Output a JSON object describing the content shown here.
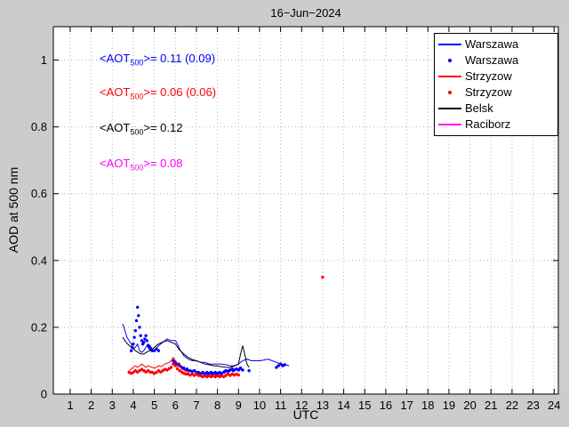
{
  "title": "16−Jun−2024",
  "axes": {
    "xlabel": "UTC",
    "ylabel": "AOD at 500 nm",
    "xticks": [
      "1",
      "2",
      "3",
      "4",
      "5",
      "6",
      "7",
      "8",
      "9",
      "10",
      "11",
      "12",
      "13",
      "14",
      "15",
      "16",
      "17",
      "18",
      "19",
      "20",
      "21",
      "22",
      "23",
      "24"
    ],
    "yticks": [
      "0",
      "0.2",
      "0.4",
      "0.6",
      "0.8",
      "1"
    ]
  },
  "annotations": [
    {
      "prefix": "<AOT",
      "sub": "500",
      "suffix": ">= 0.11 (0.09)",
      "color": "#0000ff"
    },
    {
      "prefix": "<AOT",
      "sub": "500",
      "suffix": ">= 0.06 (0.06)",
      "color": "#ff0000"
    },
    {
      "prefix": "<AOT",
      "sub": "500",
      "suffix": ">= 0.12",
      "color": "#000000"
    },
    {
      "prefix": "<AOT",
      "sub": "500",
      "suffix": ">= 0.08",
      "color": "#ff00ff"
    }
  ],
  "legend": {
    "position": "top-right",
    "entries": [
      {
        "label": "Warszawa",
        "color": "#0000ff",
        "marker": "line"
      },
      {
        "label": "Warszawa",
        "color": "#0000ff",
        "marker": "dot"
      },
      {
        "label": "Strzyzow",
        "color": "#ff0000",
        "marker": "line"
      },
      {
        "label": "Strzyzow",
        "color": "#ff0000",
        "marker": "dot"
      },
      {
        "label": "Belsk",
        "color": "#000000",
        "marker": "line"
      },
      {
        "label": "Raciborz",
        "color": "#ff00ff",
        "marker": "line"
      }
    ]
  },
  "chart_data": {
    "type": "line",
    "title": "16−Jun−2024",
    "xlabel": "UTC",
    "ylabel": "AOD at 500 nm",
    "xlim": [
      0.2,
      24.2
    ],
    "ylim": [
      0,
      1.1
    ],
    "grid": true,
    "series": [
      {
        "name": "Warszawa",
        "type": "line",
        "color": "#0000ff",
        "points": [
          [
            3.5,
            0.21
          ],
          [
            3.6,
            0.19
          ],
          [
            3.7,
            0.17
          ],
          [
            3.8,
            0.16
          ],
          [
            3.9,
            0.15
          ],
          [
            4.0,
            0.135
          ],
          [
            4.1,
            0.14
          ],
          [
            4.2,
            0.15
          ],
          [
            4.3,
            0.13
          ],
          [
            4.4,
            0.125
          ],
          [
            4.5,
            0.13
          ],
          [
            4.6,
            0.14
          ],
          [
            4.7,
            0.15
          ],
          [
            4.8,
            0.145
          ],
          [
            4.9,
            0.135
          ],
          [
            5.0,
            0.13
          ],
          [
            5.2,
            0.145
          ],
          [
            5.4,
            0.155
          ],
          [
            5.6,
            0.165
          ],
          [
            5.8,
            0.16
          ],
          [
            6.0,
            0.16
          ],
          [
            6.1,
            0.15
          ],
          [
            6.2,
            0.135
          ],
          [
            6.3,
            0.125
          ],
          [
            6.4,
            0.115
          ],
          [
            6.5,
            0.11
          ],
          [
            6.6,
            0.105
          ],
          [
            6.8,
            0.1
          ],
          [
            7.0,
            0.1
          ],
          [
            7.2,
            0.095
          ],
          [
            7.4,
            0.095
          ],
          [
            7.6,
            0.09
          ],
          [
            7.8,
            0.09
          ],
          [
            8.0,
            0.09
          ],
          [
            8.2,
            0.09
          ],
          [
            8.4,
            0.088
          ],
          [
            8.6,
            0.085
          ],
          [
            8.8,
            0.085
          ],
          [
            9.0,
            0.09
          ],
          [
            9.2,
            0.1
          ],
          [
            9.4,
            0.105
          ],
          [
            9.6,
            0.1
          ],
          [
            9.8,
            0.1
          ],
          [
            10.0,
            0.1
          ],
          [
            10.2,
            0.102
          ],
          [
            10.4,
            0.105
          ],
          [
            10.6,
            0.1
          ],
          [
            10.8,
            0.095
          ],
          [
            11.0,
            0.09
          ],
          [
            11.2,
            0.088
          ],
          [
            11.4,
            0.085
          ]
        ]
      },
      {
        "name": "Warszawa",
        "type": "scatter",
        "color": "#0000ff",
        "points": [
          [
            3.9,
            0.13
          ],
          [
            3.95,
            0.14
          ],
          [
            4.0,
            0.15
          ],
          [
            4.05,
            0.17
          ],
          [
            4.1,
            0.19
          ],
          [
            4.15,
            0.22
          ],
          [
            4.2,
            0.26
          ],
          [
            4.25,
            0.235
          ],
          [
            4.3,
            0.2
          ],
          [
            4.35,
            0.175
          ],
          [
            4.4,
            0.16
          ],
          [
            4.45,
            0.15
          ],
          [
            4.5,
            0.155
          ],
          [
            4.55,
            0.165
          ],
          [
            4.6,
            0.175
          ],
          [
            4.65,
            0.16
          ],
          [
            4.7,
            0.145
          ],
          [
            4.75,
            0.14
          ],
          [
            4.8,
            0.135
          ],
          [
            4.9,
            0.13
          ],
          [
            5.0,
            0.13
          ],
          [
            5.1,
            0.135
          ],
          [
            5.2,
            0.13
          ],
          [
            5.9,
            0.1
          ],
          [
            5.95,
            0.095
          ],
          [
            6.0,
            0.095
          ],
          [
            6.05,
            0.09
          ],
          [
            6.1,
            0.088
          ],
          [
            6.15,
            0.09
          ],
          [
            6.2,
            0.085
          ],
          [
            6.3,
            0.08
          ],
          [
            6.4,
            0.078
          ],
          [
            6.5,
            0.072
          ],
          [
            6.55,
            0.075
          ],
          [
            6.6,
            0.07
          ],
          [
            6.7,
            0.07
          ],
          [
            6.8,
            0.068
          ],
          [
            6.9,
            0.07
          ],
          [
            7.0,
            0.065
          ],
          [
            7.1,
            0.065
          ],
          [
            7.15,
            0.062
          ],
          [
            7.2,
            0.06
          ],
          [
            7.3,
            0.065
          ],
          [
            7.35,
            0.062
          ],
          [
            7.4,
            0.06
          ],
          [
            7.5,
            0.065
          ],
          [
            7.55,
            0.06
          ],
          [
            7.6,
            0.062
          ],
          [
            7.7,
            0.065
          ],
          [
            7.75,
            0.06
          ],
          [
            7.8,
            0.062
          ],
          [
            7.9,
            0.065
          ],
          [
            7.95,
            0.06
          ],
          [
            8.0,
            0.062
          ],
          [
            8.1,
            0.065
          ],
          [
            8.15,
            0.06
          ],
          [
            8.2,
            0.062
          ],
          [
            8.3,
            0.065
          ],
          [
            8.35,
            0.068
          ],
          [
            8.4,
            0.07
          ],
          [
            8.5,
            0.068
          ],
          [
            8.55,
            0.07
          ],
          [
            8.6,
            0.072
          ],
          [
            8.7,
            0.075
          ],
          [
            8.75,
            0.07
          ],
          [
            8.8,
            0.072
          ],
          [
            8.9,
            0.075
          ],
          [
            9.0,
            0.072
          ],
          [
            9.05,
            0.075
          ],
          [
            9.1,
            0.078
          ],
          [
            9.2,
            0.072
          ],
          [
            9.5,
            0.07
          ],
          [
            10.8,
            0.08
          ],
          [
            10.9,
            0.085
          ],
          [
            11.0,
            0.09
          ],
          [
            11.1,
            0.085
          ],
          [
            11.2,
            0.088
          ]
        ]
      },
      {
        "name": "Strzyzow",
        "type": "line",
        "color": "#ff0000",
        "points": [
          [
            3.8,
            0.07
          ],
          [
            3.9,
            0.075
          ],
          [
            4.0,
            0.08
          ],
          [
            4.1,
            0.085
          ],
          [
            4.2,
            0.08
          ],
          [
            4.3,
            0.085
          ],
          [
            4.4,
            0.09
          ],
          [
            4.5,
            0.085
          ],
          [
            4.6,
            0.08
          ],
          [
            4.7,
            0.085
          ],
          [
            4.8,
            0.082
          ],
          [
            4.9,
            0.08
          ],
          [
            5.0,
            0.078
          ],
          [
            5.1,
            0.08
          ],
          [
            5.2,
            0.085
          ],
          [
            5.3,
            0.082
          ],
          [
            5.4,
            0.085
          ],
          [
            5.5,
            0.09
          ],
          [
            5.6,
            0.092
          ],
          [
            5.7,
            0.095
          ],
          [
            5.8,
            0.1
          ],
          [
            5.9,
            0.11
          ],
          [
            6.0,
            0.1
          ],
          [
            6.1,
            0.09
          ],
          [
            6.2,
            0.082
          ],
          [
            6.3,
            0.075
          ],
          [
            6.4,
            0.072
          ],
          [
            6.5,
            0.07
          ],
          [
            6.6,
            0.068
          ]
        ]
      },
      {
        "name": "Strzyzow",
        "type": "scatter",
        "color": "#ff0000",
        "points": [
          [
            3.8,
            0.065
          ],
          [
            3.9,
            0.062
          ],
          [
            4.0,
            0.065
          ],
          [
            4.1,
            0.07
          ],
          [
            4.2,
            0.066
          ],
          [
            4.3,
            0.07
          ],
          [
            4.4,
            0.074
          ],
          [
            4.5,
            0.07
          ],
          [
            4.6,
            0.066
          ],
          [
            4.7,
            0.07
          ],
          [
            4.8,
            0.066
          ],
          [
            4.9,
            0.065
          ],
          [
            5.0,
            0.062
          ],
          [
            5.1,
            0.065
          ],
          [
            5.2,
            0.07
          ],
          [
            5.3,
            0.066
          ],
          [
            5.4,
            0.07
          ],
          [
            5.5,
            0.074
          ],
          [
            5.6,
            0.072
          ],
          [
            5.7,
            0.076
          ],
          [
            5.8,
            0.08
          ],
          [
            5.9,
            0.09
          ],
          [
            6.0,
            0.085
          ],
          [
            6.1,
            0.076
          ],
          [
            6.2,
            0.07
          ],
          [
            6.3,
            0.066
          ],
          [
            6.4,
            0.062
          ],
          [
            6.5,
            0.06
          ],
          [
            6.6,
            0.06
          ],
          [
            6.7,
            0.057
          ],
          [
            6.8,
            0.06
          ],
          [
            6.9,
            0.056
          ],
          [
            7.0,
            0.06
          ],
          [
            7.1,
            0.056
          ],
          [
            7.2,
            0.055
          ],
          [
            7.3,
            0.052
          ],
          [
            7.4,
            0.055
          ],
          [
            7.5,
            0.052
          ],
          [
            7.6,
            0.055
          ],
          [
            7.7,
            0.052
          ],
          [
            7.8,
            0.055
          ],
          [
            7.9,
            0.052
          ],
          [
            8.0,
            0.055
          ],
          [
            8.1,
            0.052
          ],
          [
            8.2,
            0.055
          ],
          [
            8.3,
            0.052
          ],
          [
            8.4,
            0.056
          ],
          [
            8.5,
            0.06
          ],
          [
            8.6,
            0.056
          ],
          [
            8.7,
            0.06
          ],
          [
            8.8,
            0.057
          ],
          [
            8.9,
            0.06
          ],
          [
            9.0,
            0.057
          ],
          [
            13.0,
            0.35
          ]
        ]
      },
      {
        "name": "Belsk",
        "type": "line",
        "color": "#000000",
        "points": [
          [
            3.5,
            0.17
          ],
          [
            3.6,
            0.16
          ],
          [
            3.7,
            0.152
          ],
          [
            3.8,
            0.146
          ],
          [
            3.9,
            0.14
          ],
          [
            4.0,
            0.136
          ],
          [
            4.1,
            0.13
          ],
          [
            4.2,
            0.126
          ],
          [
            4.3,
            0.122
          ],
          [
            4.4,
            0.12
          ],
          [
            4.5,
            0.12
          ],
          [
            4.6,
            0.124
          ],
          [
            4.7,
            0.128
          ],
          [
            4.8,
            0.13
          ],
          [
            4.9,
            0.134
          ],
          [
            5.0,
            0.14
          ],
          [
            5.2,
            0.15
          ],
          [
            5.4,
            0.156
          ],
          [
            5.6,
            0.16
          ],
          [
            5.8,
            0.155
          ],
          [
            6.0,
            0.15
          ],
          [
            6.2,
            0.132
          ],
          [
            6.4,
            0.12
          ],
          [
            6.6,
            0.11
          ],
          [
            6.8,
            0.104
          ],
          [
            7.0,
            0.1
          ],
          [
            7.2,
            0.095
          ],
          [
            7.4,
            0.09
          ],
          [
            7.6,
            0.088
          ],
          [
            7.8,
            0.085
          ],
          [
            8.0,
            0.084
          ],
          [
            8.2,
            0.082
          ],
          [
            8.4,
            0.08
          ],
          [
            8.6,
            0.08
          ],
          [
            8.8,
            0.084
          ],
          [
            9.0,
            0.09
          ],
          [
            9.1,
            0.12
          ],
          [
            9.2,
            0.145
          ],
          [
            9.3,
            0.118
          ],
          [
            9.4,
            0.09
          ],
          [
            9.5,
            0.08
          ]
        ]
      },
      {
        "name": "Raciborz",
        "type": "line",
        "color": "#ff00ff",
        "points": []
      }
    ]
  }
}
